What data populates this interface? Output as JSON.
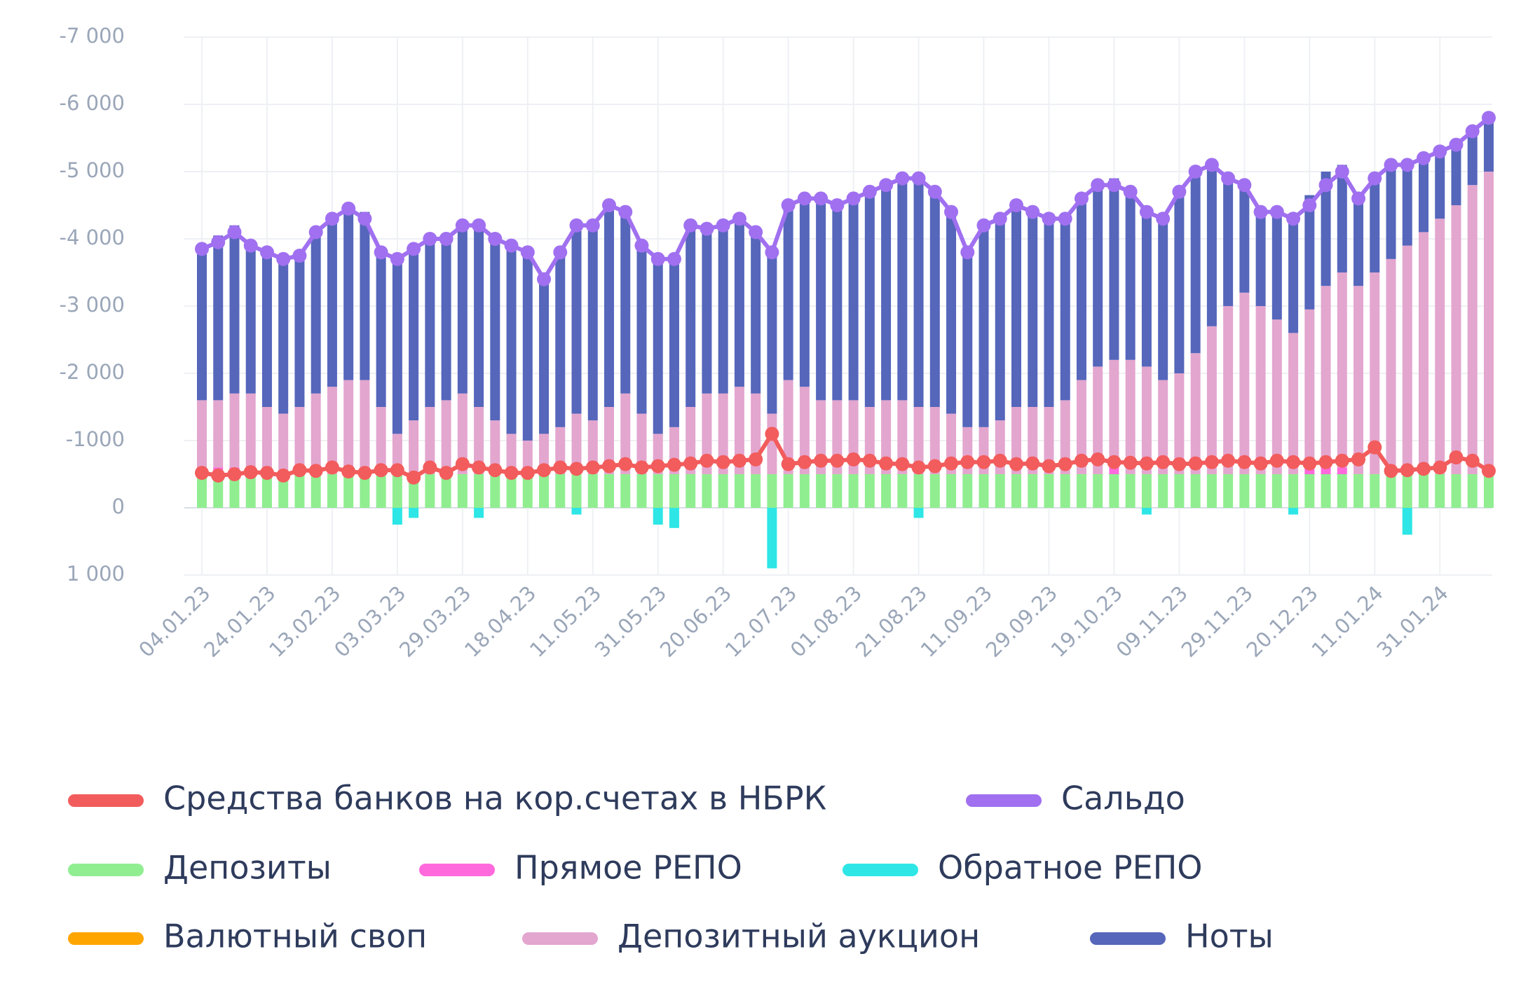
{
  "chart_data": {
    "type": "bar",
    "categories": [
      "04.01.23",
      null,
      null,
      null,
      "24.01.23",
      null,
      null,
      null,
      "13.02.23",
      null,
      null,
      null,
      "03.03.23",
      null,
      null,
      null,
      "29.03.23",
      null,
      null,
      null,
      "18.04.23",
      null,
      null,
      null,
      "11.05.23",
      null,
      null,
      null,
      "31.05.23",
      null,
      null,
      null,
      "20.06.23",
      null,
      null,
      null,
      "12.07.23",
      null,
      null,
      null,
      "01.08.23",
      null,
      null,
      null,
      "21.08.23",
      null,
      null,
      null,
      "11.09.23",
      null,
      null,
      null,
      "29.09.23",
      null,
      null,
      null,
      "19.10.23",
      null,
      null,
      null,
      "09.11.23",
      null,
      null,
      null,
      "29.11.23",
      null,
      null,
      null,
      "20.12.23",
      null,
      null,
      null,
      "11.01.24",
      null,
      null,
      null,
      "31.01.24",
      null,
      null,
      null
    ],
    "ylim": [
      1000,
      -7000
    ],
    "yticks": [
      {
        "value": 1000,
        "label": "1 000"
      },
      0,
      -1000,
      {
        "value": -2000,
        "label": "-2 000"
      },
      {
        "value": -3000,
        "label": "-3 000"
      },
      {
        "value": -4000,
        "label": "-4 000"
      },
      {
        "value": -5000,
        "label": "-5 000"
      },
      {
        "value": -6000,
        "label": "-6 000"
      },
      {
        "value": -7000,
        "label": "-7 000"
      }
    ],
    "grid": true,
    "series": [
      {
        "name": "Средства банков на кор.счетах в НБРК",
        "type": "line",
        "color": "#f25c5c",
        "values": [
          -520,
          -480,
          -500,
          -530,
          -520,
          -480,
          -560,
          -550,
          -600,
          -540,
          -520,
          -560,
          -560,
          -450,
          -600,
          -520,
          -650,
          -600,
          -560,
          -520,
          -520,
          -560,
          -600,
          -580,
          -600,
          -620,
          -650,
          -600,
          -620,
          -640,
          -660,
          -700,
          -680,
          -700,
          -720,
          -1100,
          -650,
          -680,
          -700,
          -700,
          -720,
          -700,
          -660,
          -650,
          -600,
          -620,
          -660,
          -680,
          -680,
          -700,
          -650,
          -660,
          -620,
          -650,
          -700,
          -720,
          -680,
          -670,
          -660,
          -680,
          -650,
          -660,
          -680,
          -700,
          -680,
          -660,
          -700,
          -680,
          -660,
          -680,
          -700,
          -720,
          -900,
          -550,
          -560,
          -580,
          -600,
          -750,
          -700,
          -550
        ]
      },
      {
        "name": "Сальдо",
        "type": "line",
        "color": "#a070f0",
        "values": [
          -3850,
          -3950,
          -4100,
          -3900,
          -3800,
          -3700,
          -3750,
          -4100,
          -4300,
          -4450,
          -4300,
          -3800,
          -3700,
          -3850,
          -4000,
          -4000,
          -4200,
          -4200,
          -4000,
          -3900,
          -3800,
          -3400,
          -3800,
          -4200,
          -4200,
          -4500,
          -4400,
          -3900,
          -3700,
          -3700,
          -4200,
          -4150,
          -4200,
          -4300,
          -4100,
          -3800,
          -4500,
          -4600,
          -4600,
          -4500,
          -4600,
          -4700,
          -4800,
          -4900,
          -4900,
          -4700,
          -4400,
          -3800,
          -4200,
          -4300,
          -4500,
          -4400,
          -4300,
          -4300,
          -4600,
          -4800,
          -4800,
          -4700,
          -4400,
          -4300,
          -4700,
          -5000,
          -5100,
          -4900,
          -4800,
          -4400,
          -4400,
          -4300,
          -4500,
          -4800,
          -5000,
          -4600,
          -4900,
          -5100,
          -5100,
          -5200,
          -5300,
          -5400,
          -5600,
          -5800
        ]
      },
      {
        "name": "Депозиты",
        "type": "bar",
        "color": "#90ee90",
        "values": [
          -500,
          -500,
          -500,
          -500,
          -500,
          -500,
          -500,
          -500,
          -500,
          -500,
          -500,
          -500,
          -500,
          -500,
          -500,
          -500,
          -500,
          -500,
          -500,
          -500,
          -500,
          -500,
          -500,
          -500,
          -500,
          -500,
          -500,
          -500,
          -500,
          -500,
          -500,
          -500,
          -500,
          -500,
          -500,
          -500,
          -500,
          -500,
          -500,
          -500,
          -500,
          -500,
          -500,
          -500,
          -500,
          -500,
          -500,
          -500,
          -500,
          -500,
          -500,
          -500,
          -500,
          -500,
          -500,
          -500,
          -500,
          -500,
          -500,
          -500,
          -500,
          -500,
          -500,
          -500,
          -500,
          -500,
          -500,
          -500,
          -500,
          -500,
          -500,
          -500,
          -500,
          -500,
          -500,
          -500,
          -500,
          -500,
          -500,
          -500
        ]
      },
      {
        "name": "Прямое РЕПО",
        "type": "bar",
        "color": "#ff69dc",
        "values": [
          0,
          -100,
          -100,
          0,
          0,
          0,
          0,
          0,
          0,
          0,
          -100,
          0,
          0,
          0,
          0,
          0,
          0,
          0,
          0,
          0,
          0,
          0,
          0,
          0,
          0,
          0,
          0,
          0,
          0,
          0,
          0,
          0,
          0,
          0,
          0,
          0,
          0,
          0,
          0,
          0,
          0,
          0,
          0,
          0,
          0,
          0,
          0,
          0,
          0,
          0,
          0,
          0,
          0,
          0,
          0,
          0,
          -100,
          0,
          0,
          0,
          0,
          0,
          0,
          0,
          0,
          0,
          0,
          0,
          -150,
          -200,
          -100,
          0,
          0,
          0,
          0,
          0,
          0,
          0,
          0,
          0
        ]
      },
      {
        "name": "Обратное РЕПО",
        "type": "bar",
        "color": "#2ee6e6",
        "values": [
          0,
          0,
          0,
          0,
          0,
          0,
          0,
          0,
          0,
          0,
          0,
          0,
          250,
          150,
          0,
          0,
          0,
          150,
          0,
          0,
          0,
          0,
          0,
          100,
          0,
          0,
          0,
          0,
          250,
          300,
          0,
          0,
          0,
          0,
          0,
          900,
          0,
          0,
          0,
          0,
          0,
          0,
          0,
          0,
          150,
          0,
          0,
          0,
          0,
          0,
          0,
          0,
          0,
          0,
          0,
          0,
          0,
          0,
          100,
          0,
          0,
          0,
          0,
          0,
          0,
          0,
          0,
          100,
          0,
          0,
          0,
          0,
          0,
          0,
          400,
          0,
          0,
          0,
          0,
          0
        ]
      },
      {
        "name": "Валютный своп",
        "type": "bar",
        "color": "#ffa500",
        "values": [
          0,
          0,
          0,
          0,
          0,
          0,
          0,
          0,
          0,
          0,
          0,
          0,
          0,
          0,
          0,
          0,
          0,
          0,
          0,
          0,
          0,
          0,
          0,
          0,
          0,
          0,
          0,
          0,
          0,
          0,
          0,
          0,
          0,
          0,
          0,
          0,
          0,
          0,
          0,
          0,
          0,
          0,
          0,
          0,
          0,
          0,
          0,
          0,
          0,
          0,
          0,
          0,
          0,
          0,
          0,
          0,
          0,
          0,
          0,
          0,
          0,
          0,
          0,
          0,
          0,
          0,
          0,
          0,
          0,
          0,
          0,
          0,
          0,
          0,
          0,
          0,
          0,
          0,
          0,
          0
        ]
      },
      {
        "name": "Депозитный аукцион",
        "type": "bar",
        "color": "#e3a6cf",
        "values": [
          -1100,
          -1000,
          -1100,
          -1200,
          -1000,
          -900,
          -1000,
          -1200,
          -1300,
          -1400,
          -1300,
          -1000,
          -600,
          -800,
          -1000,
          -1100,
          -1200,
          -1000,
          -800,
          -600,
          -500,
          -600,
          -700,
          -900,
          -800,
          -1000,
          -1200,
          -900,
          -600,
          -700,
          -1000,
          -1200,
          -1200,
          -1300,
          -1200,
          -900,
          -1400,
          -1300,
          -1100,
          -1100,
          -1100,
          -1000,
          -1100,
          -1100,
          -1000,
          -1000,
          -900,
          -700,
          -700,
          -800,
          -1000,
          -1000,
          -1000,
          -1100,
          -1400,
          -1600,
          -1600,
          -1700,
          -1600,
          -1400,
          -1500,
          -1800,
          -2200,
          -2500,
          -2700,
          -2500,
          -2300,
          -2100,
          -2300,
          -2600,
          -2900,
          -2800,
          -3000,
          -3200,
          -3400,
          -3600,
          -3800,
          -4000,
          -4300,
          -4500
        ]
      },
      {
        "name": "Ноты",
        "type": "bar",
        "color": "#5566bb",
        "values": [
          -2250,
          -2450,
          -2500,
          -2200,
          -2300,
          -2300,
          -2250,
          -2400,
          -2500,
          -2550,
          -2500,
          -2300,
          -2600,
          -2550,
          -2500,
          -2400,
          -2500,
          -2700,
          -2700,
          -2800,
          -2800,
          -2300,
          -2600,
          -2800,
          -2900,
          -3000,
          -2700,
          -2500,
          -2600,
          -2500,
          -2700,
          -2450,
          -2500,
          -2500,
          -2400,
          -2400,
          -2600,
          -2800,
          -3000,
          -2900,
          -3000,
          -3200,
          -3200,
          -3300,
          -3400,
          -3200,
          -3000,
          -2600,
          -3000,
          -3000,
          -3000,
          -2900,
          -2800,
          -2700,
          -2700,
          -2700,
          -2700,
          -2500,
          -2300,
          -2400,
          -2700,
          -2700,
          -2400,
          -1900,
          -1600,
          -1400,
          -1600,
          -1700,
          -1700,
          -1700,
          -1600,
          -1300,
          -1400,
          -1400,
          -1200,
          -1100,
          -1000,
          -900,
          -800,
          -800
        ]
      }
    ]
  }
}
